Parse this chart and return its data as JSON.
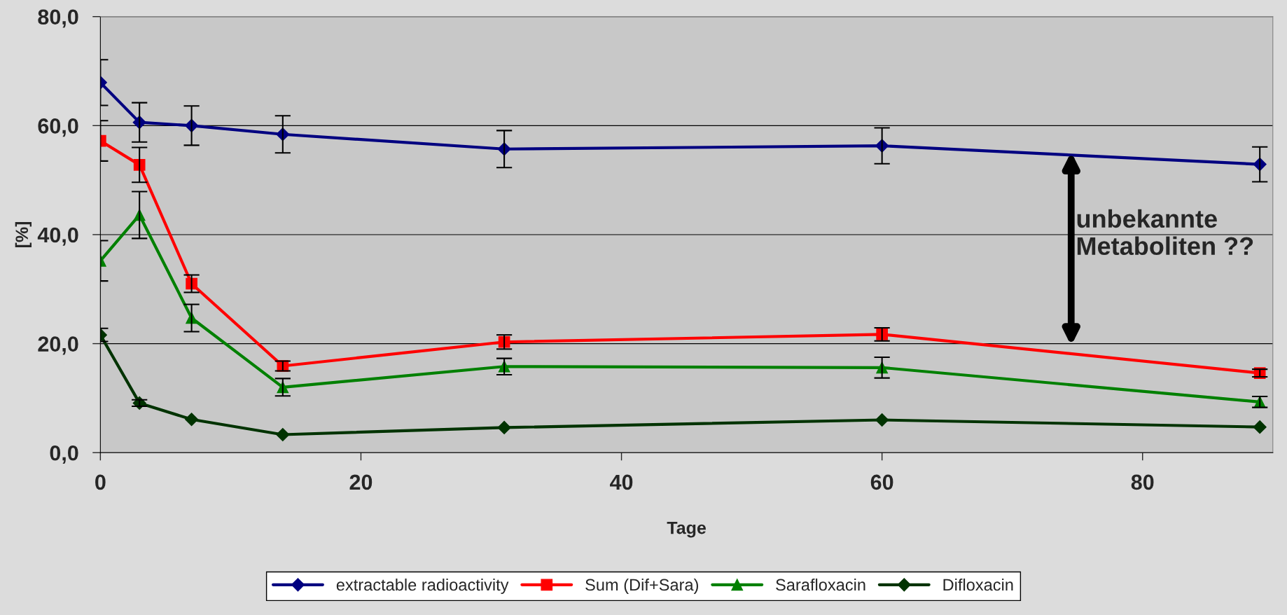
{
  "chart_data": {
    "type": "line",
    "xlabel": "Tage",
    "ylabel": "[%]",
    "x": [
      0,
      3,
      7,
      14,
      31,
      60,
      89
    ],
    "series": [
      {
        "name": "extractable radioactivity",
        "color": "#000080",
        "marker": "diamond",
        "values": [
          67.9,
          60.6,
          60.0,
          58.4,
          55.7,
          56.3,
          52.9
        ],
        "errors": [
          4.2,
          3.6,
          3.6,
          3.4,
          3.4,
          3.3,
          3.2
        ]
      },
      {
        "name": "Sum (Dif+Sara)",
        "color": "#ff0000",
        "marker": "square",
        "values": [
          57.2,
          52.8,
          31.0,
          15.9,
          20.3,
          21.7,
          14.6
        ],
        "errors": [
          3.7,
          3.2,
          1.6,
          0.9,
          1.3,
          1.2,
          0.7
        ]
      },
      {
        "name": "Sarafloxacin",
        "color": "#008000",
        "marker": "triangle",
        "values": [
          35.2,
          43.6,
          24.7,
          12.0,
          15.8,
          15.6,
          9.3
        ],
        "errors": [
          3.7,
          4.3,
          2.5,
          1.6,
          1.5,
          1.9,
          1.0
        ]
      },
      {
        "name": "Difloxacin",
        "color": "#003300",
        "marker": "diamond",
        "values": [
          21.6,
          9.1,
          6.1,
          3.3,
          4.6,
          6.0,
          4.7
        ],
        "errors": [
          1.2,
          0.6,
          null,
          null,
          null,
          null,
          null
        ]
      }
    ],
    "xlim": [
      0,
      90
    ],
    "xticks": [
      0,
      20,
      40,
      60,
      80
    ],
    "ylim": [
      0,
      80
    ],
    "yticks": [
      {
        "value": 0,
        "label": "0,0"
      },
      {
        "value": 20,
        "label": "20,0"
      },
      {
        "value": 40,
        "label": "40,0"
      },
      {
        "value": 60,
        "label": "60,0"
      },
      {
        "value": 80,
        "label": "80,0"
      }
    ],
    "grid": "y",
    "legend": "bottom",
    "line_style": "solid",
    "annotations": [
      "unbekannte\nMetaboliten ??"
    ]
  }
}
